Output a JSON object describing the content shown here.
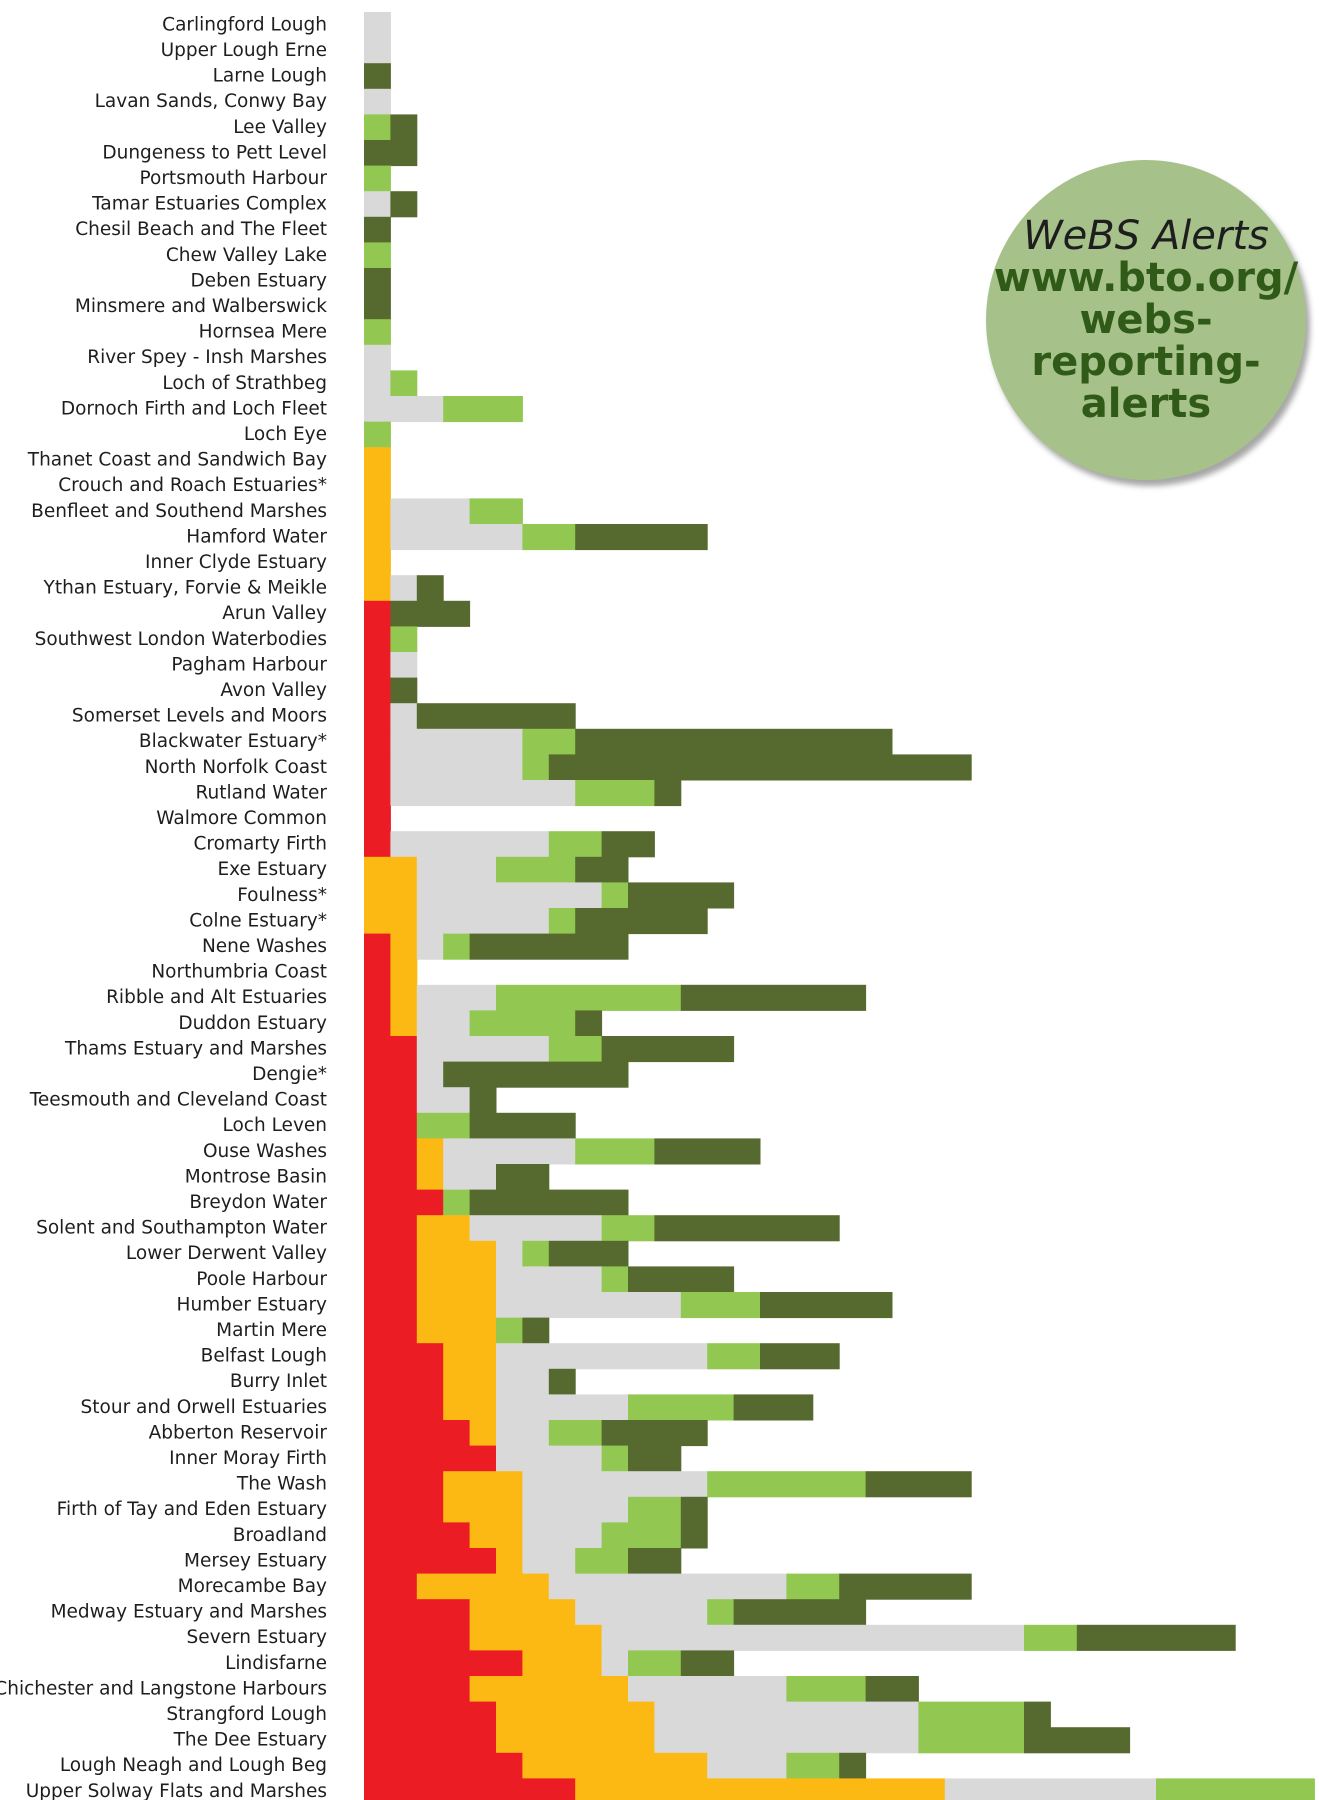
{
  "chart_data": {
    "type": "bar",
    "orientation": "horizontal",
    "stacked": true,
    "categories": [
      "Carlingford Lough",
      "Upper Lough Erne",
      "Larne Lough",
      "Lavan Sands, Conwy Bay",
      "Lee Valley",
      "Dungeness to Pett Level",
      "Portsmouth Harbour",
      "Tamar Estuaries Complex",
      "Chesil Beach and The Fleet",
      "Chew Valley Lake",
      "Deben Estuary",
      "Minsmere and Walberswick",
      "Hornsea Mere",
      "River Spey - Insh Marshes",
      "Loch of Strathbeg",
      "Dornoch Firth and Loch Fleet",
      "Loch Eye",
      "Thanet Coast and Sandwich Bay",
      "Crouch and Roach Estuaries*",
      "Benfleet and Southend Marshes",
      "Hamford Water",
      "Inner Clyde Estuary",
      "Ythan Estuary, Forvie & Meikle",
      "Arun Valley",
      "Southwest London Waterbodies",
      "Pagham Harbour",
      "Avon Valley",
      "Somerset Levels and Moors",
      "Blackwater Estuary*",
      "North Norfolk Coast",
      "Rutland Water",
      "Walmore Common",
      "Cromarty Firth",
      "Exe Estuary",
      "Foulness*",
      "Colne Estuary*",
      "Nene Washes",
      "Northumbria Coast",
      "Ribble and Alt Estuaries",
      "Duddon Estuary",
      "Thams Estuary and Marshes",
      "Dengie*",
      "Teesmouth and Cleveland Coast",
      "Loch Leven",
      "Ouse Washes",
      "Montrose Basin",
      "Breydon Water",
      "Solent and Southampton Water",
      "Lower Derwent Valley",
      "Poole Harbour",
      "Humber Estuary",
      "Martin Mere",
      "Belfast Lough",
      "Burry Inlet",
      "Stour and Orwell Estuaries",
      "Abberton Reservoir",
      "Inner Moray Firth",
      "The Wash",
      "Firth of Tay and Eden Estuary",
      "Broadland",
      "Mersey Estuary",
      "Morecambe Bay",
      "Medway Estuary and Marshes",
      "Severn Estuary",
      "Lindisfarne",
      "Chichester and Langstone Harbours",
      "Strangford Lough",
      "The Dee Estuary",
      "Lough Neagh and Lough Beg",
      "Upper Solway Flats and Marshes"
    ],
    "series": [
      {
        "color": "#ec1c24",
        "values": [
          0,
          0,
          0,
          0,
          0,
          0,
          0,
          0,
          0,
          0,
          0,
          0,
          0,
          0,
          0,
          0,
          0,
          0,
          0,
          0,
          0,
          0,
          0,
          1,
          1,
          1,
          1,
          1,
          1,
          1,
          1,
          1,
          1,
          0,
          0,
          0,
          1,
          1,
          1,
          1,
          2,
          2,
          2,
          2,
          2,
          2,
          3,
          2,
          2,
          2,
          2,
          2,
          3,
          3,
          3,
          4,
          5,
          3,
          3,
          4,
          5,
          2,
          4,
          4,
          6,
          4,
          5,
          5,
          6,
          8
        ]
      },
      {
        "color": "#fdb913",
        "values": [
          0,
          0,
          0,
          0,
          0,
          0,
          0,
          0,
          0,
          0,
          0,
          0,
          0,
          0,
          0,
          0,
          0,
          1,
          1,
          1,
          1,
          1,
          1,
          0,
          0,
          0,
          0,
          0,
          0,
          0,
          0,
          0,
          0,
          2,
          2,
          2,
          1,
          1,
          1,
          1,
          0,
          0,
          0,
          0,
          1,
          1,
          0,
          2,
          3,
          3,
          3,
          3,
          2,
          2,
          2,
          1,
          0,
          3,
          3,
          2,
          1,
          5,
          4,
          5,
          3,
          6,
          6,
          6,
          7,
          14
        ]
      },
      {
        "color": "#d9d9d9",
        "values": [
          1,
          1,
          0,
          1,
          0,
          0,
          0,
          1,
          0,
          0,
          0,
          0,
          0,
          1,
          1,
          3,
          0,
          0,
          0,
          3,
          5,
          0,
          1,
          0,
          0,
          1,
          0,
          1,
          5,
          5,
          7,
          0,
          6,
          3,
          7,
          5,
          1,
          0,
          3,
          2,
          5,
          1,
          2,
          0,
          5,
          2,
          0,
          5,
          1,
          4,
          7,
          0,
          8,
          2,
          5,
          2,
          4,
          7,
          4,
          3,
          2,
          9,
          5,
          16,
          1,
          6,
          10,
          10,
          3,
          8
        ]
      },
      {
        "color": "#92c851",
        "values": [
          0,
          0,
          0,
          0,
          1,
          0,
          1,
          0,
          0,
          1,
          0,
          0,
          1,
          0,
          1,
          3,
          1,
          0,
          0,
          2,
          2,
          0,
          0,
          0,
          1,
          0,
          0,
          0,
          2,
          1,
          3,
          0,
          2,
          3,
          1,
          1,
          1,
          0,
          7,
          4,
          2,
          0,
          0,
          2,
          3,
          0,
          1,
          2,
          1,
          1,
          3,
          1,
          2,
          0,
          4,
          2,
          1,
          6,
          2,
          3,
          2,
          2,
          1,
          2,
          2,
          3,
          4,
          4,
          2,
          6
        ]
      },
      {
        "color": "#566a2f",
        "values": [
          0,
          0,
          1,
          0,
          1,
          2,
          0,
          1,
          1,
          0,
          1,
          1,
          0,
          0,
          0,
          0,
          0,
          0,
          0,
          0,
          5,
          0,
          1,
          3,
          0,
          0,
          1,
          6,
          12,
          16,
          1,
          0,
          2,
          2,
          4,
          5,
          6,
          0,
          7,
          1,
          5,
          7,
          1,
          4,
          4,
          2,
          6,
          7,
          3,
          4,
          5,
          1,
          3,
          1,
          3,
          4,
          2,
          4,
          1,
          1,
          2,
          5,
          5,
          6,
          2,
          2,
          1,
          4,
          1,
          0
        ]
      }
    ]
  },
  "badge": {
    "title": "WeBS Alerts",
    "line1": "www.bto.org/",
    "line2": "webs-reporting-",
    "line3": "alerts"
  }
}
